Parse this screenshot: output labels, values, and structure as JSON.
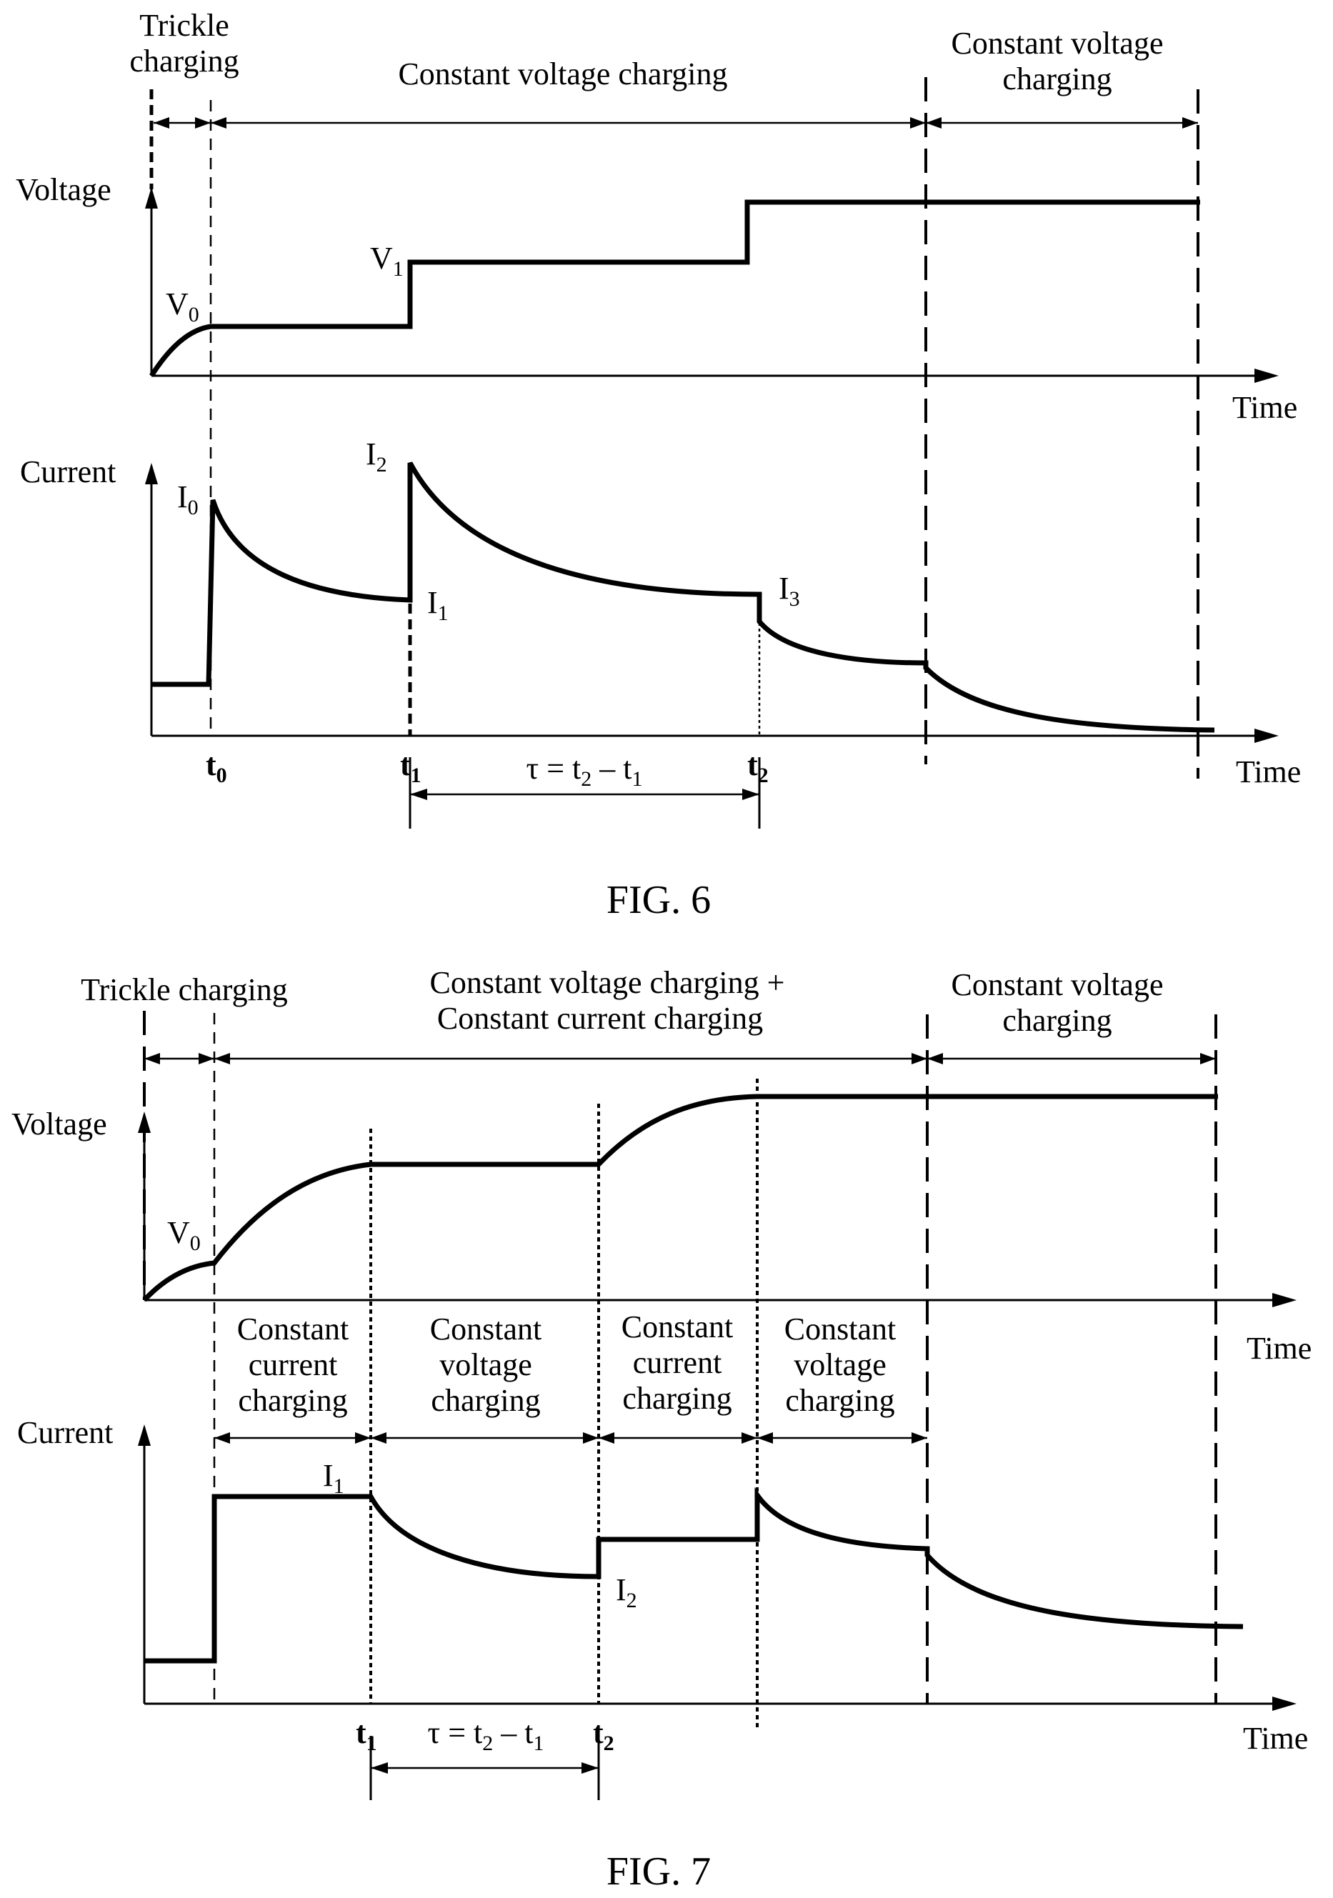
{
  "fig6": {
    "caption": "FIG. 6",
    "phase_trickle_line1": "Trickle",
    "phase_trickle_line2": "charging",
    "phase_cv_main": "Constant voltage charging",
    "phase_cv_final_line1": "Constant voltage",
    "phase_cv_final_line2": "charging",
    "voltage_axis": "Voltage",
    "current_axis": "Current",
    "time_axis_top": "Time",
    "time_axis_bottom": "Time",
    "v0": {
      "base": "V",
      "sub": "0"
    },
    "v1": {
      "base": "V",
      "sub": "1"
    },
    "i0": {
      "base": "I",
      "sub": "0"
    },
    "i1": {
      "base": "I",
      "sub": "1"
    },
    "i2": {
      "base": "I",
      "sub": "2"
    },
    "i3": {
      "base": "I",
      "sub": "3"
    },
    "t0": {
      "base": "t",
      "sub": "0"
    },
    "t1": {
      "base": "t",
      "sub": "1"
    },
    "t2": {
      "base": "t",
      "sub": "2"
    },
    "tau": {
      "a": "τ = t",
      "s1": "2",
      "b": " – t",
      "s2": "1"
    }
  },
  "fig7": {
    "caption": "FIG. 7",
    "phase_trickle": "Trickle charging",
    "phase_combo_line1": "Constant voltage charging +",
    "phase_combo_line2": "Constant current charging",
    "phase_cv_final_line1": "Constant voltage",
    "phase_cv_final_line2": "charging",
    "voltage_axis": "Voltage",
    "current_axis": "Current",
    "time_axis_top": "Time",
    "time_axis_bottom": "Time",
    "v0": {
      "base": "V",
      "sub": "0"
    },
    "i1": {
      "base": "I",
      "sub": "1"
    },
    "i2": {
      "base": "I",
      "sub": "2"
    },
    "t1": {
      "base": "t",
      "sub": "1"
    },
    "t2": {
      "base": "t",
      "sub": "2"
    },
    "tau": {
      "a": "τ = t",
      "s1": "2",
      "b": " – t",
      "s2": "1"
    },
    "sub_phases": [
      {
        "l1": "Constant",
        "l2": "current",
        "l3": "charging"
      },
      {
        "l1": "Constant",
        "l2": "voltage",
        "l3": "charging"
      },
      {
        "l1": "Constant",
        "l2": "current",
        "l3": "charging"
      },
      {
        "l1": "Constant",
        "l2": "voltage",
        "l3": "charging"
      }
    ]
  }
}
